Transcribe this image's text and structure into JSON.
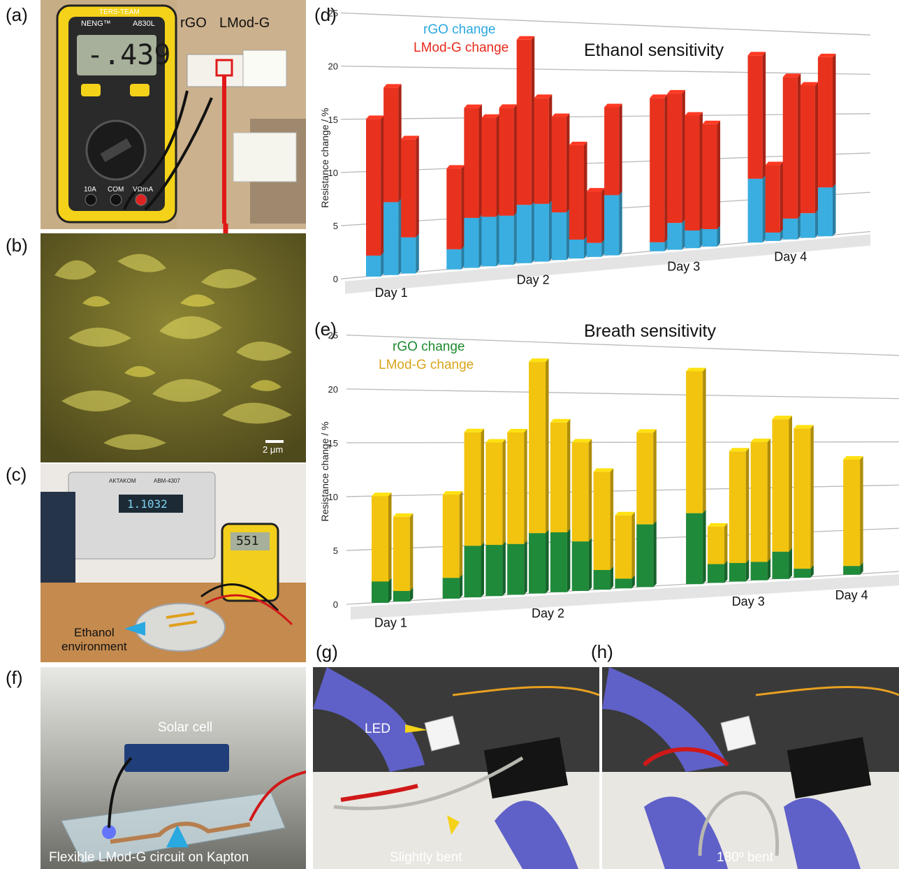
{
  "panels": {
    "a": "(a)",
    "b": "(b)",
    "c": "(c)",
    "d": "(d)",
    "e": "(e)",
    "f": "(f)",
    "g": "(g)",
    "h": "(h)"
  },
  "photo_a": {
    "multimeter_brand": "NENG™",
    "multimeter_model": "A830L",
    "display_value": "-.439",
    "brand_sticker": "TERS-TEAM",
    "label_rgo": "rGO",
    "label_lmodg": "LMod-G",
    "port_10a": "10A",
    "port_com": "COM",
    "port_vdma": "VΩmA"
  },
  "photo_b": {
    "scale_bar": "2 μm"
  },
  "photo_c": {
    "bench_brand": "AKTAKOM",
    "bench_model": "ABM-4307",
    "bench_display": "1.1032",
    "handheld_display": "551",
    "annotation": [
      "Ethanol",
      "environment"
    ]
  },
  "photo_f": {
    "label_solar": "Solar cell",
    "label_circuit": "Flexible LMod-G circuit on Kapton"
  },
  "photo_g": {
    "label_led": "LED",
    "label_bent": "Slightly bent"
  },
  "photo_h": {
    "label_bent": "180º bent"
  },
  "colors": {
    "rgo_d": "#3aaee0",
    "lmodg_d": "#e8321e",
    "rgo_e": "#1f8a3a",
    "lmodg_e": "#f2c40f",
    "legend_rgo_d": "#2aa8e0",
    "legend_lmodg_d": "#e8291c",
    "legend_rgo_e": "#1e8a2e",
    "legend_lmodg_e": "#d8a51a"
  },
  "chart_data": [
    {
      "type": "bar",
      "stacked": true,
      "title": "Ethanol sensitivity",
      "ylabel": "Resistance change / %",
      "ylim": [
        0,
        25
      ],
      "yticks": [
        0,
        5,
        10,
        15,
        20,
        25
      ],
      "legend": [
        "rGO change",
        "LMod-G change"
      ],
      "legend_position": "top-left",
      "groups": [
        {
          "label": "Day 1",
          "rgo": [
            2,
            7,
            3.5
          ],
          "total": [
            15,
            18,
            13
          ]
        },
        {
          "label": "Day 2",
          "rgo": [
            2,
            5,
            5,
            5,
            6,
            6,
            5,
            2,
            1.5,
            6.5
          ],
          "total": [
            10,
            16,
            15,
            16,
            23,
            17,
            15,
            12,
            7,
            16
          ]
        },
        {
          "label": "Day 3",
          "rgo": [
            1,
            3,
            2,
            2
          ],
          "total": [
            17,
            17.5,
            15,
            14
          ]
        },
        {
          "label": "Day 4",
          "rgo": [
            7.5,
            1,
            2.5,
            3,
            6
          ],
          "total": [
            22,
            9,
            19.5,
            18.5,
            22
          ]
        }
      ]
    },
    {
      "type": "bar",
      "stacked": true,
      "title": "Breath sensitivity",
      "ylabel": "Resistance change / %",
      "ylim": [
        0,
        25
      ],
      "yticks": [
        0,
        5,
        10,
        15,
        20,
        25
      ],
      "legend": [
        "rGO change",
        "LMod-G change"
      ],
      "legend_position": "top-left",
      "groups": [
        {
          "label": "Day 1",
          "rgo": [
            2,
            1
          ],
          "total": [
            10,
            8
          ]
        },
        {
          "label": "Day 2",
          "rgo": [
            2,
            5,
            5,
            5,
            6,
            6,
            5,
            2,
            1,
            6.5
          ],
          "total": [
            10,
            16,
            15,
            16,
            23,
            17,
            15,
            12,
            7.5,
            16
          ]
        },
        {
          "label": "Day 3",
          "rgo": [
            7.5,
            2,
            2,
            2,
            3,
            1
          ],
          "total": [
            22.5,
            6,
            14,
            15,
            17.5,
            16.5
          ]
        },
        {
          "label": "Day 4",
          "rgo": [
            1
          ],
          "total": [
            13
          ]
        }
      ]
    }
  ]
}
